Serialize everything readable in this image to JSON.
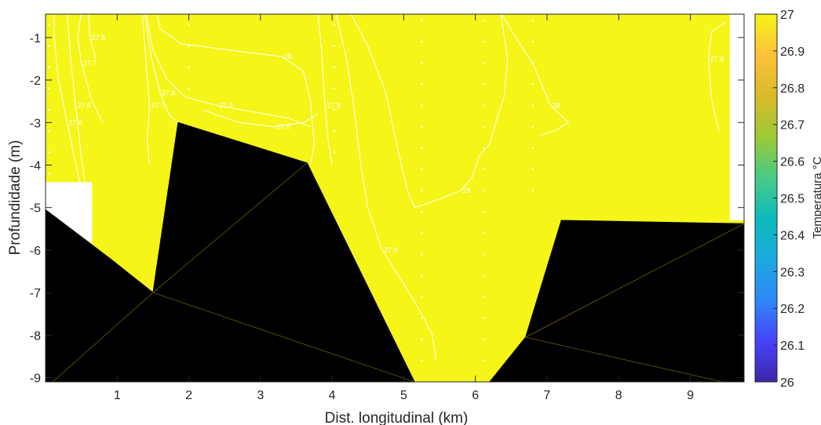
{
  "chart_data": {
    "type": "contour",
    "xlabel": "Dist. longitudinal (km)",
    "ylabel": "Profundidade (m)",
    "xlim": [
      0,
      9.75
    ],
    "ylim": [
      -9.1,
      -0.45
    ],
    "xticks": [
      1,
      2,
      3,
      4,
      5,
      6,
      7,
      8,
      9
    ],
    "yticks": [
      -1,
      -2,
      -3,
      -4,
      -5,
      -6,
      -7,
      -8,
      -9
    ],
    "fill_color": "#f5f518",
    "mask_color": "#000000",
    "contour_color": "#ffffff",
    "colorbar": {
      "label": "Temperatura °C",
      "min": 26,
      "max": 27,
      "ticks": [
        "26",
        "26.1",
        "26.2",
        "26.3",
        "26.4",
        "26.5",
        "26.6",
        "26.7",
        "26.8",
        "26.9",
        "27"
      ],
      "colormap": [
        "#3e26a8",
        "#4743f8",
        "#2e87f7",
        "#1ca9df",
        "#0dbbbb",
        "#48cb86",
        "#9dc936",
        "#dbba28",
        "#fdc13a",
        "#f5f518"
      ]
    },
    "contours": [
      {
        "label": "27.6",
        "points": [
          [
            0.12,
            -0.4
          ],
          [
            0.12,
            -1.0
          ],
          [
            0.18,
            -2.0
          ],
          [
            0.3,
            -3.0
          ],
          [
            0.45,
            -4.2
          ],
          [
            0.55,
            -5.0
          ],
          [
            0.6,
            -5.8
          ]
        ]
      },
      {
        "label": "27.6",
        "points": [
          [
            0.3,
            -0.4
          ],
          [
            0.35,
            -1.5
          ],
          [
            0.42,
            -2.6
          ],
          [
            0.5,
            -3.8
          ],
          [
            0.55,
            -4.4
          ]
        ]
      },
      {
        "label": "27.7",
        "points": [
          [
            0.5,
            -0.4
          ],
          [
            0.45,
            -1.0
          ],
          [
            0.5,
            -1.6
          ],
          [
            0.65,
            -2.5
          ],
          [
            0.8,
            -3.0
          ]
        ]
      },
      {
        "label": "27.8",
        "points": [
          [
            0.6,
            -0.4
          ],
          [
            0.62,
            -1.0
          ],
          [
            0.7,
            -1.5
          ]
        ]
      },
      {
        "label": "27.7",
        "points": [
          [
            1.35,
            -0.4
          ],
          [
            1.4,
            -1.5
          ],
          [
            1.45,
            -2.6
          ],
          [
            1.42,
            -3.4
          ],
          [
            1.45,
            -4.0
          ]
        ]
      },
      {
        "label": "27.8",
        "points": [
          [
            1.38,
            -0.4
          ],
          [
            1.48,
            -1.5
          ],
          [
            1.6,
            -2.3
          ],
          [
            1.72,
            -2.8
          ],
          [
            1.85,
            -3.0
          ]
        ]
      },
      {
        "label": "27.9",
        "points": [
          [
            1.4,
            -0.4
          ],
          [
            1.5,
            -1.3
          ],
          [
            1.7,
            -2.0
          ],
          [
            1.95,
            -2.4
          ],
          [
            2.4,
            -2.6
          ],
          [
            2.9,
            -2.75
          ],
          [
            3.4,
            -2.9
          ],
          [
            3.7,
            -3.1
          ]
        ]
      },
      {
        "label": "27.8",
        "points": [
          [
            2.2,
            -2.7
          ],
          [
            2.7,
            -3.0
          ],
          [
            3.2,
            -3.1
          ],
          [
            3.6,
            -3.0
          ],
          [
            3.8,
            -2.8
          ]
        ]
      },
      {
        "label": "28",
        "points": [
          [
            1.55,
            -0.4
          ],
          [
            1.6,
            -0.8
          ],
          [
            1.9,
            -1.15
          ],
          [
            2.6,
            -1.3
          ],
          [
            3.3,
            -1.45
          ],
          [
            3.6,
            -1.8
          ],
          [
            3.7,
            -2.5
          ],
          [
            3.75,
            -3.5
          ],
          [
            3.7,
            -4.0
          ]
        ]
      },
      {
        "label": "27.9",
        "points": [
          [
            3.8,
            -0.4
          ],
          [
            3.85,
            -1.2
          ],
          [
            3.9,
            -2.6
          ],
          [
            3.95,
            -3.5
          ],
          [
            4.0,
            -4.0
          ]
        ]
      },
      {
        "label": "27.9",
        "points": [
          [
            4.05,
            -0.4
          ],
          [
            4.2,
            -1.5
          ],
          [
            4.3,
            -2.6
          ],
          [
            4.4,
            -4.0
          ],
          [
            4.5,
            -5.0
          ],
          [
            4.7,
            -6.0
          ],
          [
            5.0,
            -6.8
          ],
          [
            5.25,
            -7.5
          ],
          [
            5.4,
            -8.0
          ],
          [
            5.45,
            -8.6
          ]
        ]
      },
      {
        "label": "28",
        "points": [
          [
            4.25,
            -0.4
          ],
          [
            4.5,
            -1.2
          ],
          [
            4.75,
            -2.3
          ],
          [
            4.9,
            -3.5
          ],
          [
            5.05,
            -4.6
          ],
          [
            5.15,
            -5.0
          ],
          [
            5.5,
            -4.8
          ],
          [
            5.8,
            -4.6
          ],
          [
            5.95,
            -4.3
          ],
          [
            6.05,
            -3.8
          ],
          [
            6.2,
            -3.5
          ],
          [
            6.3,
            -2.9
          ],
          [
            6.4,
            -2.4
          ],
          [
            6.45,
            -1.5
          ],
          [
            6.35,
            -0.4
          ]
        ]
      },
      {
        "label": "28",
        "points": [
          [
            6.35,
            -0.4
          ],
          [
            6.6,
            -1.1
          ],
          [
            6.8,
            -1.6
          ],
          [
            6.9,
            -2.0
          ],
          [
            7.05,
            -2.6
          ],
          [
            7.3,
            -3.0
          ],
          [
            7.1,
            -3.2
          ],
          [
            6.9,
            -3.3
          ]
        ]
      },
      {
        "label": "27.9",
        "points": [
          [
            9.5,
            -0.65
          ],
          [
            9.3,
            -0.85
          ],
          [
            9.25,
            -1.5
          ],
          [
            9.3,
            -2.5
          ],
          [
            9.4,
            -3.2
          ]
        ]
      }
    ],
    "mask_polygons": [
      [
        [
          0,
          -5.05
        ],
        [
          0.9,
          -6.2
        ],
        [
          1.5,
          -7.0
        ],
        [
          1.85,
          -3.0
        ],
        [
          3.65,
          -3.95
        ],
        [
          5.15,
          -9.1
        ],
        [
          0,
          -9.1
        ]
      ],
      [
        [
          6.2,
          -9.1
        ],
        [
          6.7,
          -8.05
        ],
        [
          7.2,
          -5.3
        ],
        [
          9.75,
          -5.38
        ],
        [
          9.75,
          -9.1
        ]
      ]
    ],
    "mask_edges": [
      [
        [
          1.5,
          -7.0
        ],
        [
          3.65,
          -3.95
        ]
      ],
      [
        [
          1.5,
          -7.0
        ],
        [
          5.15,
          -9.1
        ]
      ],
      [
        [
          1.5,
          -7.0
        ],
        [
          0.1,
          -9.1
        ]
      ],
      [
        [
          6.7,
          -8.05
        ],
        [
          9.75,
          -5.38
        ]
      ],
      [
        [
          6.7,
          -8.05
        ],
        [
          9.45,
          -9.1
        ]
      ]
    ],
    "blank_regions": [
      [
        [
          0,
          -4.4
        ],
        [
          0.65,
          -4.4
        ],
        [
          0.65,
          -5.85
        ],
        [
          0,
          -5.1
        ]
      ],
      [
        [
          9.55,
          -0.45
        ],
        [
          9.75,
          -0.45
        ],
        [
          9.75,
          -5.3
        ],
        [
          9.55,
          -5.3
        ]
      ]
    ],
    "data_points": [
      {
        "x": 0.05,
        "depths": [
          -0.7,
          -1.2,
          -1.7,
          -2.2,
          -2.7,
          -3.2,
          -3.7,
          -4.2
        ]
      },
      {
        "x": 2.0,
        "depths": [
          -0.7,
          -1.2,
          -1.7,
          -2.2
        ]
      },
      {
        "x": 4.03,
        "depths": [
          -0.7,
          -1.2,
          -1.7,
          -2.2,
          -2.7,
          -3.2,
          -3.7
        ]
      },
      {
        "x": 5.25,
        "depths": [
          -0.6,
          -1.1,
          -1.6,
          -2.1,
          -2.6,
          -3.1,
          -3.6,
          -4.1,
          -4.6,
          -5.1,
          -5.6,
          -6.1,
          -6.6,
          -7.1,
          -7.6,
          -8.1,
          -8.6
        ]
      },
      {
        "x": 6.12,
        "depths": [
          -0.6,
          -1.1,
          -1.6,
          -2.1,
          -2.6,
          -3.1,
          -3.6,
          -4.1,
          -4.6,
          -5.1,
          -5.6,
          -6.1,
          -6.6,
          -7.1,
          -7.6,
          -8.1,
          -8.6
        ]
      },
      {
        "x": 6.8,
        "depths": [
          -0.6,
          -1.1,
          -1.6,
          -2.1,
          -2.6,
          -3.1,
          -3.6,
          -4.1,
          -4.6
        ]
      }
    ]
  }
}
